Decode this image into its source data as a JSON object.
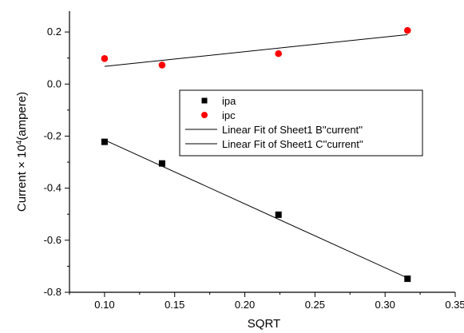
{
  "chart_data": {
    "type": "scatter",
    "xlabel": "SQRT",
    "ylabel": {
      "prefix": "Current × 10",
      "superscript": "4",
      "suffix": "(ampere)"
    },
    "xlim": [
      0.075,
      0.35
    ],
    "ylim": [
      -0.8,
      0.28
    ],
    "xticks": [
      0.1,
      0.15,
      0.2,
      0.25,
      0.3,
      0.35
    ],
    "xtick_labels": [
      "0.10",
      "0.15",
      "0.20",
      "0.25",
      "0.30",
      "0.35"
    ],
    "yticks": [
      0.2,
      0.0,
      -0.2,
      -0.4,
      -0.6,
      -0.8
    ],
    "ytick_labels": [
      "0.2",
      "0.0",
      "-0.2",
      "-0.4",
      "-0.6",
      "-0.8"
    ],
    "grid": false,
    "legend_position": "center-right",
    "series": [
      {
        "name": "ipa",
        "marker": "square",
        "color": "#000000",
        "x": [
          0.1,
          0.141,
          0.224,
          0.316
        ],
        "y": [
          -0.222,
          -0.305,
          -0.502,
          -0.748
        ]
      },
      {
        "name": "ipc",
        "marker": "circle",
        "color": "#ff0000",
        "x": [
          0.1,
          0.141,
          0.224,
          0.316
        ],
        "y": [
          0.098,
          0.073,
          0.117,
          0.206
        ]
      }
    ],
    "fits": [
      {
        "name": "Linear Fit of Sheet1 B''current''",
        "color": "#000000",
        "x": [
          0.1,
          0.316
        ],
        "y": [
          -0.215,
          -0.745
        ]
      },
      {
        "name": "Linear Fit of Sheet1 C''current''",
        "color": "#000000",
        "x": [
          0.1,
          0.316
        ],
        "y": [
          0.068,
          0.19
        ]
      }
    ]
  }
}
